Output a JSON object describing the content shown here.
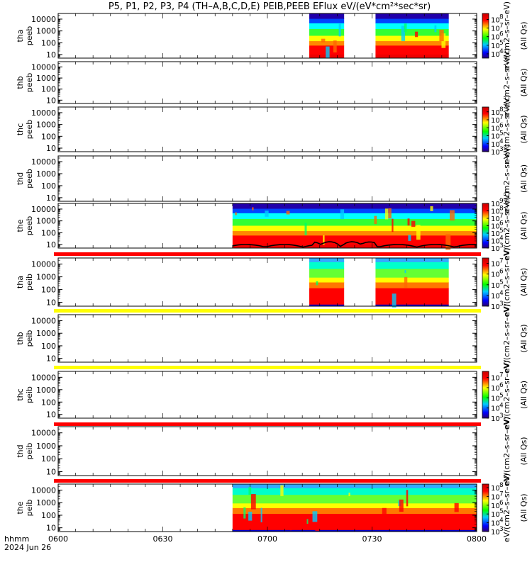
{
  "title": "P5, P1, P2, P3, P4 (TH–A,B,C,D,E) PEIB,PEEB EFlux eV/(eV*cm²*sec*sr)",
  "chart_data": {
    "type": "heatmap",
    "x_ticks": [
      "0600",
      "0630",
      "0700",
      "0730",
      "0800"
    ],
    "x_range_hhmm": [
      "0600",
      "0800"
    ],
    "y_ticks": [
      "10",
      "100",
      "1000",
      "10000"
    ],
    "y_scale": "log",
    "y_range_eV": [
      5,
      30000
    ],
    "footer": {
      "axis_label": "hhmm",
      "date": "2024 Jun 26"
    },
    "colorbar_title_a": "eV/(cm2–s–sr–eV)",
    "colorbar_title_b": "(All Qs)",
    "panels": [
      {
        "id": "thapeeb",
        "probe": "tha",
        "product": "peeb",
        "cb_exponents": [
          "8",
          "7",
          "6",
          "5",
          "4"
        ],
        "cb_min_exp": 3.5,
        "cb_max_exp": 8.7,
        "data_segments": [
          [
            "0712",
            "0722"
          ],
          [
            "0731",
            "0752"
          ]
        ],
        "status_bar": ""
      },
      {
        "id": "thbpeeb",
        "probe": "thb",
        "product": "peeb",
        "cb_exponents": [],
        "data_segments": [],
        "status_bar": ""
      },
      {
        "id": "thcpeeb",
        "probe": "thc",
        "product": "peeb",
        "cb_exponents": [
          "8",
          "7",
          "6",
          "5",
          "4",
          "3"
        ],
        "cb_min_exp": 3,
        "cb_max_exp": 8.6,
        "data_segments": [],
        "status_bar": ""
      },
      {
        "id": "thdpeeb",
        "probe": "thd",
        "product": "peeb",
        "cb_exponents": [],
        "data_segments": [],
        "status_bar": ""
      },
      {
        "id": "thepeeb",
        "probe": "the",
        "product": "peeb",
        "cb_exponents": [
          "9",
          "8",
          "7",
          "6",
          "5",
          "4",
          "3"
        ],
        "cb_min_exp": 3,
        "cb_max_exp": 9,
        "data_segments": [
          [
            "0650",
            "0800"
          ]
        ],
        "has_line": true,
        "status_bar": "red"
      },
      {
        "id": "thapeib",
        "probe": "tha",
        "product": "peib",
        "cb_exponents": [
          "7",
          "6",
          "5",
          "4",
          "3"
        ],
        "cb_min_exp": 3,
        "cb_max_exp": 7.5,
        "data_segments": [
          [
            "0712",
            "0722"
          ],
          [
            "0731",
            "0752"
          ]
        ],
        "status_bar": "yellow"
      },
      {
        "id": "thbpeib",
        "probe": "thb",
        "product": "peib",
        "cb_exponents": [],
        "data_segments": [],
        "status_bar": "yellow"
      },
      {
        "id": "thcpeib",
        "probe": "thc",
        "product": "peib",
        "cb_exponents": [
          "7",
          "6",
          "5",
          "4",
          "3"
        ],
        "cb_min_exp": 3,
        "cb_max_exp": 7.6,
        "data_segments": [],
        "status_bar": "red"
      },
      {
        "id": "thdpeib",
        "probe": "thd",
        "product": "peib",
        "cb_exponents": [],
        "data_segments": [],
        "status_bar": "red"
      },
      {
        "id": "thepeib",
        "probe": "the",
        "product": "peib",
        "cb_exponents": [
          "8",
          "7",
          "6",
          "5",
          "4",
          "3"
        ],
        "cb_min_exp": 3,
        "cb_max_exp": 8.4,
        "data_segments": [
          [
            "0650",
            "0800"
          ]
        ],
        "status_bar": ""
      }
    ]
  },
  "colors": {
    "status_red": "#ff0000",
    "status_yellow": "#ffff00"
  }
}
